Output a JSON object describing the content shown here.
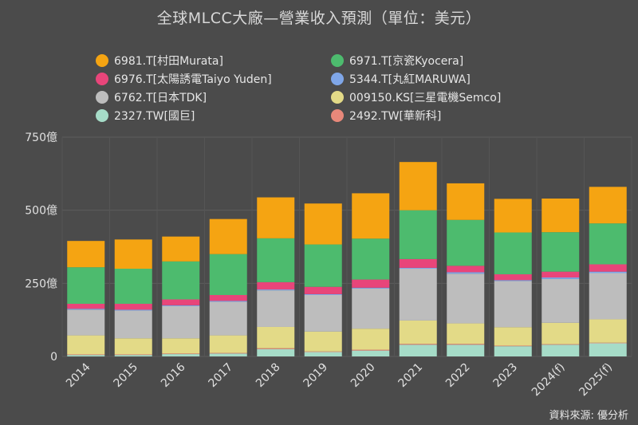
{
  "chart_data": {
    "type": "bar",
    "stacked": true,
    "title": "全球MLCC大廠—營業收入預測（單位：美元）",
    "source": "資料來源: 優分析",
    "categories": [
      "2014",
      "2015",
      "2016",
      "2017",
      "2018",
      "2019",
      "2020",
      "2021",
      "2022",
      "2023",
      "2024(f)",
      "2025(f)"
    ],
    "ylim": [
      0,
      750
    ],
    "yticks": [
      {
        "value": 0,
        "label": "0"
      },
      {
        "value": 250,
        "label": "250億"
      },
      {
        "value": 500,
        "label": "500億"
      },
      {
        "value": 750,
        "label": "750億"
      }
    ],
    "grid": true,
    "legend_position": "top",
    "series": [
      {
        "name": "2327.TW[國巨]",
        "color": "#a6dcc8",
        "values": [
          5,
          5,
          8,
          10,
          25,
          15,
          20,
          40,
          40,
          35,
          40,
          45
        ]
      },
      {
        "name": "2492.TW[華新科]",
        "color": "#e8887a",
        "values": [
          2,
          2,
          2,
          2,
          3,
          2,
          3,
          3,
          3,
          2,
          2,
          2
        ]
      },
      {
        "name": "009150.KS[三星電機Semco]",
        "color": "#e3da87",
        "values": [
          65,
          55,
          52,
          60,
          73,
          68,
          72,
          80,
          70,
          63,
          73,
          80
        ]
      },
      {
        "name": "6762.T[日本TDK]",
        "color": "#bdbdbd",
        "values": [
          88,
          95,
          110,
          115,
          125,
          125,
          137,
          177,
          170,
          158,
          150,
          158
        ]
      },
      {
        "name": "5344.T[丸紅MARUWA]",
        "color": "#7fa6e8",
        "values": [
          3,
          3,
          3,
          3,
          3,
          3,
          3,
          3,
          5,
          3,
          5,
          5
        ]
      },
      {
        "name": "6976.T[太陽誘電Taiyo Yuden]",
        "color": "#e8457a",
        "values": [
          17,
          20,
          20,
          20,
          25,
          25,
          28,
          30,
          22,
          20,
          20,
          25
        ]
      },
      {
        "name": "6971.T[京瓷Kyocera]",
        "color": "#4dbb6e",
        "values": [
          125,
          120,
          130,
          140,
          150,
          145,
          140,
          167,
          157,
          143,
          135,
          140
        ]
      },
      {
        "name": "6981.T[村田Murata]",
        "color": "#f5a412",
        "values": [
          90,
          100,
          85,
          120,
          140,
          140,
          155,
          165,
          125,
          115,
          115,
          125
        ]
      }
    ]
  },
  "legend_order": [
    {
      "name": "6981.T[村田Murata]",
      "color": "#f5a412"
    },
    {
      "name": "6971.T[京瓷Kyocera]",
      "color": "#4dbb6e"
    },
    {
      "name": "6976.T[太陽誘電Taiyo Yuden]",
      "color": "#e8457a"
    },
    {
      "name": "5344.T[丸紅MARUWA]",
      "color": "#7fa6e8"
    },
    {
      "name": "6762.T[日本TDK]",
      "color": "#bdbdbd"
    },
    {
      "name": "009150.KS[三星電機Semco]",
      "color": "#e3da87"
    },
    {
      "name": "2327.TW[國巨]",
      "color": "#a6dcc8"
    },
    {
      "name": "2492.TW[華新科]",
      "color": "#e8887a"
    }
  ]
}
